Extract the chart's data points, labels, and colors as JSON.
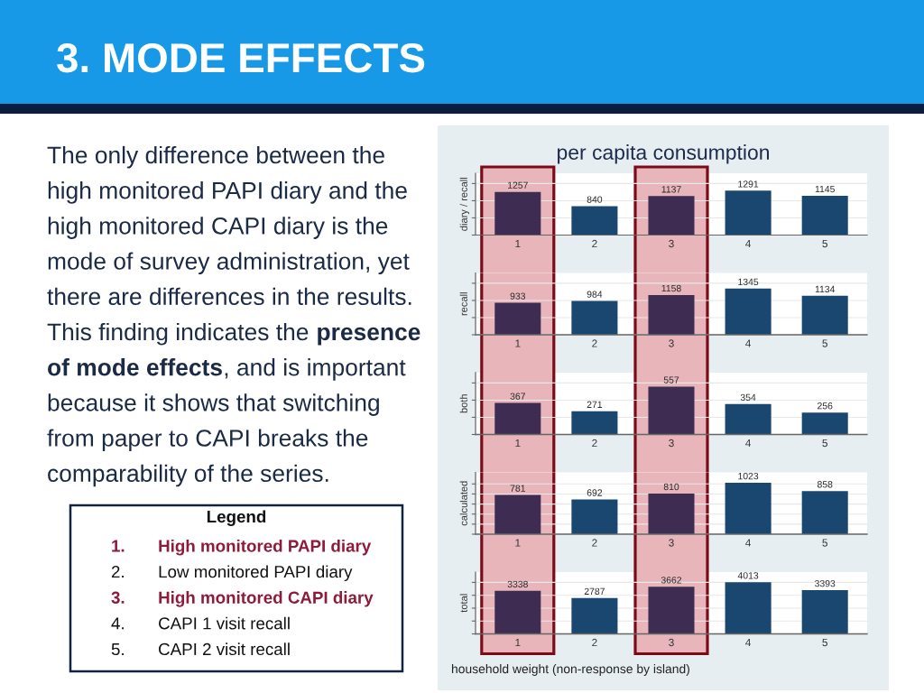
{
  "chart_data": [
    {
      "type": "other",
      "title": "3. MODE EFFECTS",
      "annotations": [
        "The only difference between the\nhigh monitored PAPI diary and the\nhigh monitored CAPI diary is the\nmode of survey administration, yet\nthere are differences in the results.",
        "This finding indicates the",
        "presence",
        "of mode effects",
        ", and is important",
        "because it shows that switching\nfrom paper to CAPI breaks the\ncomparability of the series.",
        "Legend",
        "1. High monitored PAPI diary",
        "2. Low monitored PAPI diary",
        "3. High monitored CAPI diary",
        "4. CAPI 1 visit recall",
        "5. CAPI 2 visit recall"
      ]
    },
    {
      "type": "bar",
      "title": "per capita consumption",
      "ylabel": "diary / recall",
      "categories": [
        "1",
        "2",
        "3",
        "4",
        "5"
      ],
      "values": [
        1257,
        840,
        1137,
        1291,
        1145
      ],
      "colors": [
        "#3e2c52",
        "#1a476f",
        "#3e2c52",
        "#1a476f",
        "#1a476f"
      ],
      "ylim": [
        0,
        1800
      ],
      "yticks": [
        {
          "value": 0,
          "label": null
        },
        {
          "value": 500,
          "label": null
        },
        {
          "value": 1000,
          "label": null
        },
        {
          "value": 1500,
          "label": null
        }
      ],
      "grid": "y",
      "tick_labels": "x",
      "data_labels": true,
      "bands": [
        {
          "axis": "x",
          "from": "1",
          "to": "1",
          "color": "#e8b5bb"
        },
        {
          "axis": "x",
          "from": "3",
          "to": "3",
          "color": "#e8b5bb"
        }
      ]
    },
    {
      "type": "bar",
      "ylabel": "recall",
      "categories": [
        "1",
        "2",
        "3",
        "4",
        "5"
      ],
      "values": [
        933,
        984,
        1158,
        1345,
        1134
      ],
      "colors": [
        "#3e2c52",
        "#1a476f",
        "#3e2c52",
        "#1a476f",
        "#1a476f"
      ],
      "ylim": [
        0,
        1800
      ],
      "yticks": [
        {
          "value": 0,
          "label": null
        },
        {
          "value": 500,
          "label": null
        },
        {
          "value": 1000,
          "label": null
        },
        {
          "value": 1500,
          "label": null
        }
      ],
      "grid": "y",
      "tick_labels": "x",
      "data_labels": true,
      "bands": [
        {
          "axis": "x",
          "from": "1",
          "to": "1",
          "color": "#e8b5bb"
        },
        {
          "axis": "x",
          "from": "3",
          "to": "3",
          "color": "#e8b5bb"
        }
      ]
    },
    {
      "type": "bar",
      "ylabel": "both",
      "categories": [
        "1",
        "2",
        "3",
        "4",
        "5"
      ],
      "values": [
        367,
        271,
        557,
        354,
        256
      ],
      "colors": [
        "#3e2c52",
        "#1a476f",
        "#3e2c52",
        "#1a476f",
        "#1a476f"
      ],
      "ylim": [
        0,
        720
      ],
      "yticks": [
        {
          "value": 0,
          "label": null
        },
        {
          "value": 200,
          "label": null
        },
        {
          "value": 400,
          "label": null
        },
        {
          "value": 600,
          "label": null
        }
      ],
      "grid": "y",
      "tick_labels": "x",
      "data_labels": true,
      "bands": [
        {
          "axis": "x",
          "from": "1",
          "to": "1",
          "color": "#e8b5bb"
        },
        {
          "axis": "x",
          "from": "3",
          "to": "3",
          "color": "#e8b5bb"
        }
      ]
    },
    {
      "type": "bar",
      "ylabel": "calculated",
      "categories": [
        "1",
        "2",
        "3",
        "4",
        "5"
      ],
      "values": [
        781,
        692,
        810,
        1023,
        858
      ],
      "colors": [
        "#3e2c52",
        "#1a476f",
        "#3e2c52",
        "#1a476f",
        "#1a476f"
      ],
      "ylim": [
        0,
        1230
      ],
      "yticks": [
        {
          "value": 0,
          "label": null
        },
        {
          "value": 200,
          "label": null
        },
        {
          "value": 400,
          "label": null
        },
        {
          "value": 600,
          "label": null
        },
        {
          "value": 800,
          "label": null
        },
        {
          "value": 1000,
          "label": null
        }
      ],
      "grid": "y",
      "tick_labels": "x",
      "data_labels": true,
      "bands": [
        {
          "axis": "x",
          "from": "1",
          "to": "1",
          "color": "#e8b5bb"
        },
        {
          "axis": "x",
          "from": "3",
          "to": "3",
          "color": "#e8b5bb"
        }
      ]
    },
    {
      "type": "bar",
      "ylabel": "total",
      "xlabel": "household weight (non-response by island)",
      "categories": [
        "1",
        "2",
        "3",
        "4",
        "5"
      ],
      "values": [
        3338,
        2787,
        3662,
        4013,
        3393
      ],
      "colors": [
        "#3e2c52",
        "#1a476f",
        "#3e2c52",
        "#1a476f",
        "#1a476f"
      ],
      "ylim": [
        0,
        4800
      ],
      "yticks": [
        {
          "value": 0,
          "label": null
        },
        {
          "value": 1000,
          "label": null
        },
        {
          "value": 2000,
          "label": null
        },
        {
          "value": 3000,
          "label": null
        },
        {
          "value": 4000,
          "label": null
        }
      ],
      "grid": "y",
      "tick_labels": "x",
      "data_labels": true,
      "bands": [
        {
          "axis": "x",
          "from": "1",
          "to": "1",
          "color": "#e8b5bb"
        },
        {
          "axis": "x",
          "from": "3",
          "to": "3",
          "color": "#e8b5bb"
        }
      ]
    }
  ]
}
